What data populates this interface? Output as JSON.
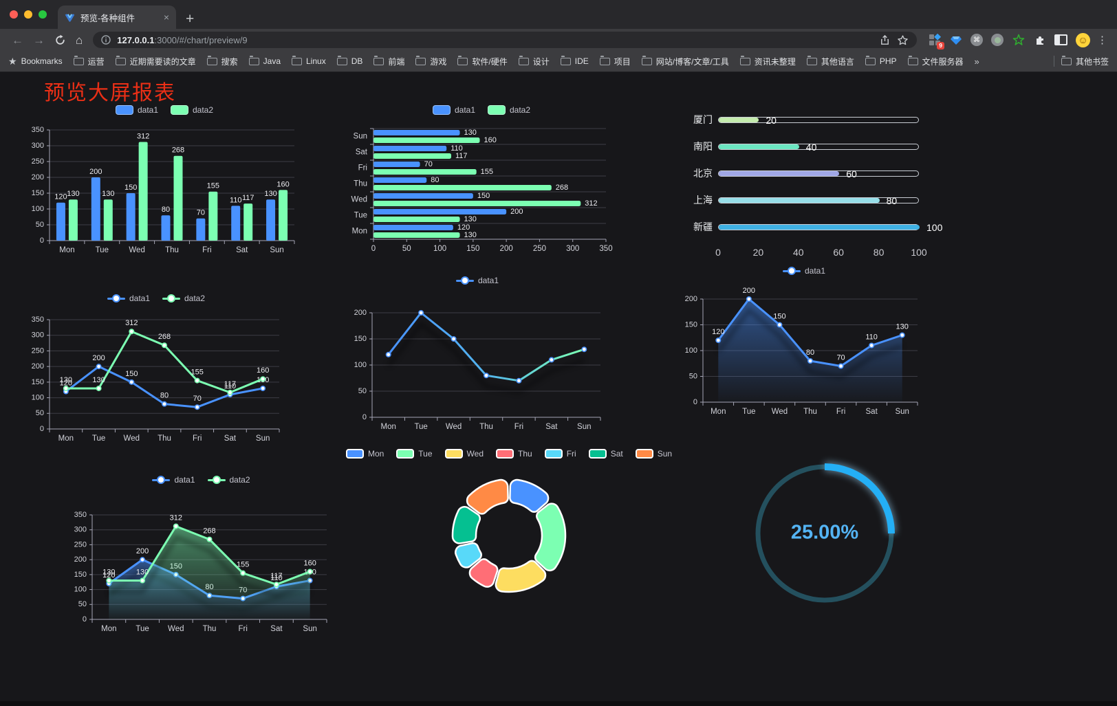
{
  "browser": {
    "tab_title": "预览-各种组件",
    "tab_close_glyph": "×",
    "new_tab_glyph": "+",
    "url_host": "127.0.0.1",
    "url_rest": ":3000/#/chart/preview/9",
    "bookmarks_label": "Bookmarks",
    "bookmark_folders": [
      "运营",
      "近期需要读的文章",
      "搜索",
      "Java",
      "Linux",
      "DB",
      "前端",
      "游戏",
      "软件/硬件",
      "设计",
      "IDE",
      "项目",
      "网站/博客/文章/工具",
      "资讯未整理",
      "其他语言",
      "PHP",
      "文件服务器"
    ],
    "overflow_glyph": "»",
    "other_bookmarks_label": "其他书签",
    "extension_badge": "9",
    "avatar_glyph": "☺",
    "cmd_glyph": "⌘",
    "kebab_glyph": "⋮",
    "back_glyph": "←",
    "forward_glyph": "→",
    "home_glyph": "⌂"
  },
  "page": {
    "title": "预览大屏报表",
    "title_color": "#ea2f16",
    "background": "#17171a"
  },
  "chart_data": [
    {
      "id": "bar-vertical",
      "type": "bar",
      "orientation": "vertical",
      "categories": [
        "Mon",
        "Tue",
        "Wed",
        "Thu",
        "Fri",
        "Sat",
        "Sun"
      ],
      "series": [
        {
          "name": "data1",
          "color": "#4992ff",
          "values": [
            120,
            200,
            150,
            80,
            70,
            110,
            130
          ]
        },
        {
          "name": "data2",
          "color": "#7cffb2",
          "values": [
            130,
            130,
            312,
            268,
            155,
            117,
            160
          ]
        }
      ],
      "ylim": [
        0,
        350
      ],
      "ytick_step": 50,
      "show_value_labels": true,
      "legend_position": "top",
      "grid": true
    },
    {
      "id": "bar-horizontal",
      "type": "bar",
      "orientation": "horizontal",
      "categories": [
        "Mon",
        "Tue",
        "Wed",
        "Thu",
        "Fri",
        "Sat",
        "Sun"
      ],
      "series": [
        {
          "name": "data1",
          "color": "#4992ff",
          "values": [
            120,
            200,
            150,
            80,
            70,
            110,
            130
          ]
        },
        {
          "name": "data2",
          "color": "#7cffb2",
          "values": [
            130,
            130,
            312,
            268,
            155,
            117,
            160
          ]
        }
      ],
      "xlim": [
        0,
        350
      ],
      "xtick_step": 50,
      "show_value_labels": true,
      "legend_position": "top",
      "grid": true
    },
    {
      "id": "progress-bars",
      "type": "bar",
      "orientation": "progress",
      "rows": [
        {
          "label": "厦门",
          "value": 20,
          "color": "#c4ebad"
        },
        {
          "label": "南阳",
          "value": 40,
          "color": "#6be6c1"
        },
        {
          "label": "北京",
          "value": 60,
          "color": "#a0a7e6"
        },
        {
          "label": "上海",
          "value": 80,
          "color": "#96dee8"
        },
        {
          "label": "新疆",
          "value": 100,
          "color": "#3fb1e3"
        }
      ],
      "xlim": [
        0,
        100
      ],
      "xticks": [
        0,
        20,
        40,
        60,
        80,
        100
      ]
    },
    {
      "id": "line-two-series",
      "type": "line",
      "categories": [
        "Mon",
        "Tue",
        "Wed",
        "Thu",
        "Fri",
        "Sat",
        "Sun"
      ],
      "series": [
        {
          "name": "data1",
          "color": "#4992ff",
          "values": [
            120,
            200,
            150,
            80,
            70,
            110,
            130
          ]
        },
        {
          "name": "data2",
          "color": "#7cffb2",
          "values": [
            130,
            130,
            312,
            268,
            155,
            117,
            160
          ]
        }
      ],
      "ylim": [
        0,
        350
      ],
      "ytick_step": 50,
      "show_value_labels": true,
      "legend_position": "top",
      "grid": true
    },
    {
      "id": "line-gradient",
      "type": "line",
      "categories": [
        "Mon",
        "Tue",
        "Wed",
        "Thu",
        "Fri",
        "Sat",
        "Sun"
      ],
      "series": [
        {
          "name": "data1",
          "gradient": [
            "#4992ff",
            "#53b5ee",
            "#7cffb2"
          ],
          "color": "#4992ff",
          "values": [
            120,
            200,
            150,
            80,
            70,
            110,
            130
          ]
        }
      ],
      "ylim": [
        0,
        200
      ],
      "ytick_step": 50,
      "show_value_labels": false,
      "legend_position": "top",
      "grid": true,
      "shadow": true
    },
    {
      "id": "line-area-blue",
      "type": "line",
      "categories": [
        "Mon",
        "Tue",
        "Wed",
        "Thu",
        "Fri",
        "Sat",
        "Sun"
      ],
      "series": [
        {
          "name": "data1",
          "color": "#4992ff",
          "values": [
            120,
            200,
            150,
            80,
            70,
            110,
            130
          ],
          "area": true
        }
      ],
      "ylim": [
        0,
        200
      ],
      "ytick_step": 50,
      "show_value_labels": true,
      "legend_position": "top",
      "grid": true,
      "shadow": true
    },
    {
      "id": "line-area-two",
      "type": "line",
      "categories": [
        "Mon",
        "Tue",
        "Wed",
        "Thu",
        "Fri",
        "Sat",
        "Sun"
      ],
      "series": [
        {
          "name": "data1",
          "color": "#4992ff",
          "values": [
            120,
            200,
            150,
            80,
            70,
            110,
            130
          ],
          "area": true
        },
        {
          "name": "data2",
          "color": "#7cffb2",
          "values": [
            130,
            130,
            312,
            268,
            155,
            117,
            160
          ],
          "area": true
        }
      ],
      "ylim": [
        0,
        350
      ],
      "ytick_step": 50,
      "show_value_labels": true,
      "legend_position": "top",
      "grid": true,
      "shadow": true
    },
    {
      "id": "donut-week",
      "type": "pie",
      "categories": [
        "Mon",
        "Tue",
        "Wed",
        "Thu",
        "Fri",
        "Sat",
        "Sun"
      ],
      "values": [
        120,
        200,
        150,
        80,
        70,
        110,
        130
      ],
      "colors": [
        "#4992ff",
        "#7cffb2",
        "#fddd60",
        "#ff6e76",
        "#58d9f9",
        "#05c091",
        "#ff8a45"
      ],
      "legend_position": "top",
      "inner_radius": 48,
      "outer_radius": 82,
      "border_color": "#ffffff"
    },
    {
      "id": "gauge-percent",
      "type": "gauge",
      "value": 25,
      "max": 100,
      "display": "25.00%",
      "progress_color": "#24aff5",
      "track_color": "#24505e",
      "text_color": "#54b4f4"
    }
  ]
}
